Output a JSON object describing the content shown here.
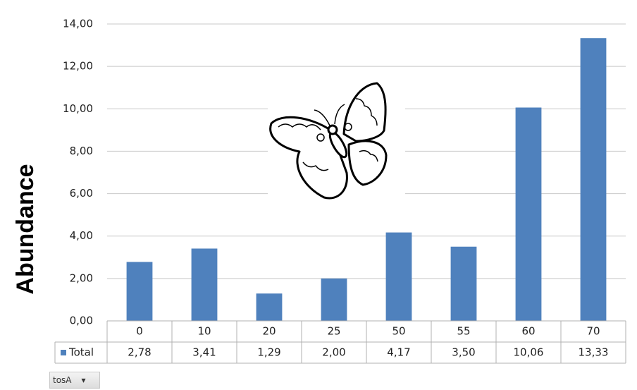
{
  "chart_data": {
    "type": "bar",
    "ylabel": "Abundance",
    "categories": [
      "0",
      "10",
      "20",
      "25",
      "50",
      "55",
      "60",
      "70"
    ],
    "series": [
      {
        "name": "Total",
        "color": "#4f81bd",
        "values": [
          2.78,
          3.41,
          1.29,
          2.0,
          4.17,
          3.5,
          10.06,
          13.33
        ],
        "value_labels": [
          "2,78",
          "3,41",
          "1,29",
          "2,00",
          "4,17",
          "3,50",
          "10,06",
          "13,33"
        ]
      }
    ],
    "ylim": [
      0,
      14
    ],
    "yticks": [
      {
        "value": 0,
        "label": "0,00"
      },
      {
        "value": 2,
        "label": "2,00"
      },
      {
        "value": 4,
        "label": "4,00"
      },
      {
        "value": 6,
        "label": "6,00"
      },
      {
        "value": 8,
        "label": "8,00"
      },
      {
        "value": 10,
        "label": "10,00"
      },
      {
        "value": 12,
        "label": "12,00"
      },
      {
        "value": 14,
        "label": "14,00"
      }
    ],
    "grid": true,
    "data_table": true
  },
  "field_button": "tosA"
}
